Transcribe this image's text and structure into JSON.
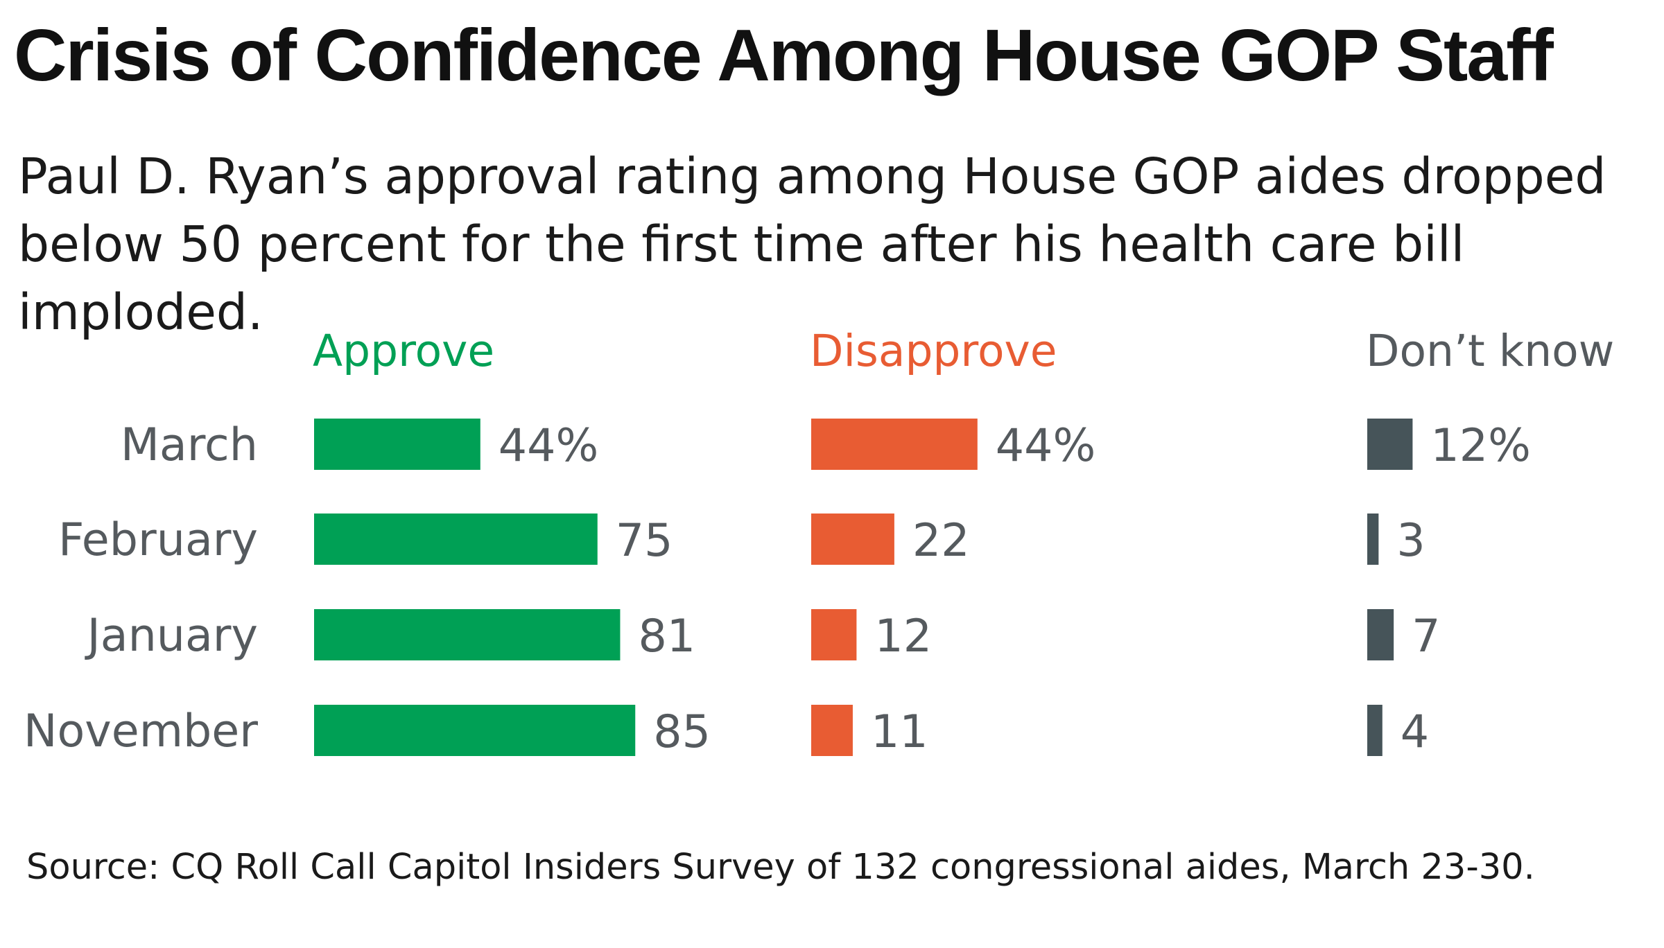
{
  "title": "Crisis of Confidence Among House GOP Staff",
  "subtitle": "Paul D. Ryan’s approval rating among House GOP aides dropped below 50 percent for the first time after his health care bill imploded.",
  "source": "Source: CQ Roll Call Capitol Insiders Survey of 132 congressional aides, March 23-30.",
  "chart_data": {
    "type": "bar",
    "orientation": "horizontal",
    "layout": "small-multiples",
    "title": "Crisis of Confidence Among House GOP Staff",
    "categories": [
      "March",
      "February",
      "January",
      "November"
    ],
    "series": [
      {
        "name": "Approve",
        "color": "#00a055",
        "values": [
          44,
          75,
          81,
          85
        ],
        "labels": [
          "44%",
          "75",
          "81",
          "85"
        ]
      },
      {
        "name": "Disapprove",
        "color": "#e85c33",
        "values": [
          44,
          22,
          12,
          11
        ],
        "labels": [
          "44%",
          "22",
          "12",
          "11"
        ]
      },
      {
        "name": "Don’t know",
        "color": "#465459",
        "values": [
          12,
          3,
          7,
          4
        ],
        "labels": [
          "12%",
          "3",
          "7",
          "4"
        ]
      }
    ],
    "units": "percent",
    "grid": false,
    "header_color": "#555a5e"
  }
}
